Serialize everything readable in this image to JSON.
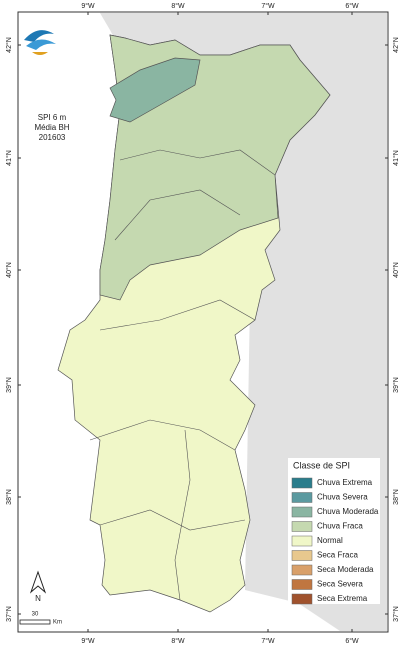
{
  "header": {
    "lines": [
      "SPI 6 m",
      "Média BH",
      "201603"
    ]
  },
  "lon_labels": [
    "9°W",
    "8°W",
    "7°W",
    "6°W"
  ],
  "lat_labels": [
    "42°N",
    "41°N",
    "40°N",
    "39°N",
    "38°N",
    "37°N"
  ],
  "legend": {
    "title": "Classe de SPI",
    "items": [
      {
        "label": "Chuva Extrema",
        "color": "#2a7d8c"
      },
      {
        "label": "Chuva Severa",
        "color": "#5b9aa0"
      },
      {
        "label": "Chuva Moderada",
        "color": "#8ab5a2"
      },
      {
        "label": "Chuva Fraca",
        "color": "#c5d9b0"
      },
      {
        "label": "Normal",
        "color": "#f0f7c8"
      },
      {
        "label": "Seca Fraca",
        "color": "#e8c88e"
      },
      {
        "label": "Seca Moderada",
        "color": "#d9a06a"
      },
      {
        "label": "Seca Severa",
        "color": "#c07640"
      },
      {
        "label": "Seca Extrema",
        "color": "#a0522d"
      }
    ]
  },
  "north_arrow": "N",
  "scale": {
    "distance": "30",
    "unit": "Km"
  }
}
